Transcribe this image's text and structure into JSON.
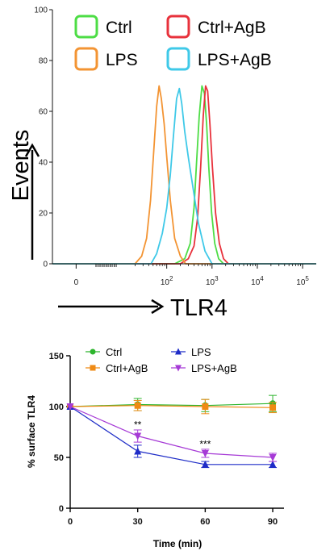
{
  "chart_data": [
    {
      "type": "line",
      "subtype": "histogram-overlay",
      "xlabel": "TLR4",
      "ylabel": "Events",
      "x_scale": "log",
      "xlim": [
        0.3,
        200000
      ],
      "ylim": [
        0,
        100
      ],
      "y_ticks": [
        "0",
        "20",
        "40",
        "60",
        "80",
        "100"
      ],
      "x_ticks": [
        {
          "value": 1,
          "label": "0",
          "sup": ""
        },
        {
          "value": 100,
          "label": "10",
          "sup": "2"
        },
        {
          "value": 1000,
          "label": "10",
          "sup": "3"
        },
        {
          "value": 10000,
          "label": "10",
          "sup": "4"
        },
        {
          "value": 100000,
          "label": "10",
          "sup": "5"
        }
      ],
      "legend_placement": "top",
      "grid": false,
      "series": [
        {
          "name": "Ctrl",
          "color": "#4ddd45",
          "legend_column": 0,
          "x": [
            150,
            250,
            330,
            400,
            450,
            520,
            600,
            680,
            760,
            850,
            980,
            1150,
            1400,
            1800
          ],
          "y": [
            0,
            2,
            8,
            22,
            38,
            58,
            70,
            67,
            55,
            38,
            20,
            8,
            2,
            0
          ]
        },
        {
          "name": "Ctrl+AgB",
          "color": "#e8323c",
          "legend_column": 1,
          "x": [
            200,
            300,
            400,
            480,
            560,
            640,
            720,
            800,
            900,
            1020,
            1200,
            1450,
            1800,
            2300
          ],
          "y": [
            0,
            2,
            7,
            18,
            38,
            58,
            70,
            68,
            55,
            38,
            20,
            8,
            2,
            0
          ]
        },
        {
          "name": "LPS",
          "color": "#f39433",
          "legend_column": 0,
          "x": [
            20,
            28,
            36,
            44,
            52,
            60,
            68,
            76,
            88,
            100,
            120,
            150,
            200,
            260
          ],
          "y": [
            0,
            3,
            10,
            25,
            45,
            62,
            70,
            65,
            55,
            42,
            25,
            10,
            3,
            0
          ]
        },
        {
          "name": "LPS+AgB",
          "color": "#3fc9e8",
          "legend_column": 1,
          "x": [
            45,
            60,
            80,
            100,
            120,
            140,
            165,
            190,
            215,
            250,
            300,
            380,
            500,
            700,
            1000
          ],
          "y": [
            0,
            4,
            12,
            22,
            35,
            50,
            65,
            69,
            63,
            52,
            42,
            30,
            16,
            5,
            0
          ]
        }
      ]
    },
    {
      "type": "line",
      "xlabel": "Time (min)",
      "ylabel": "% surface TLR4",
      "xlim": [
        0,
        95
      ],
      "ylim": [
        0,
        150
      ],
      "x_ticks": [
        "0",
        "30",
        "60",
        "90"
      ],
      "y_ticks": [
        "0",
        "50",
        "100",
        "150"
      ],
      "legend_placement": "top",
      "grid": false,
      "series": [
        {
          "name": "Ctrl",
          "color": "#2db52d",
          "marker": "circle",
          "legend_column": 0,
          "x": [
            0,
            30,
            60,
            90
          ],
          "y": [
            100,
            102,
            101,
            103
          ],
          "err": [
            0,
            6,
            6,
            8
          ]
        },
        {
          "name": "Ctrl+AgB",
          "color": "#ef8a14",
          "marker": "square",
          "legend_column": 0,
          "x": [
            0,
            30,
            60,
            90
          ],
          "y": [
            100,
            101,
            100,
            99
          ],
          "err": [
            0,
            5,
            7,
            5
          ]
        },
        {
          "name": "LPS",
          "color": "#1e2cc7",
          "marker": "triangle-up",
          "legend_column": 1,
          "x": [
            0,
            30,
            60,
            90
          ],
          "y": [
            100,
            56,
            43,
            43
          ],
          "err": [
            0,
            6,
            3,
            3
          ]
        },
        {
          "name": "LPS+AgB",
          "color": "#a63ad6",
          "marker": "triangle-down",
          "legend_column": 1,
          "x": [
            0,
            30,
            60,
            90
          ],
          "y": [
            100,
            71,
            54,
            50
          ],
          "err": [
            0,
            6,
            4,
            4
          ]
        }
      ],
      "annotations": [
        {
          "text": "**",
          "x": 30,
          "y": 79
        },
        {
          "text": "***",
          "x": 60,
          "y": 60
        }
      ]
    }
  ]
}
